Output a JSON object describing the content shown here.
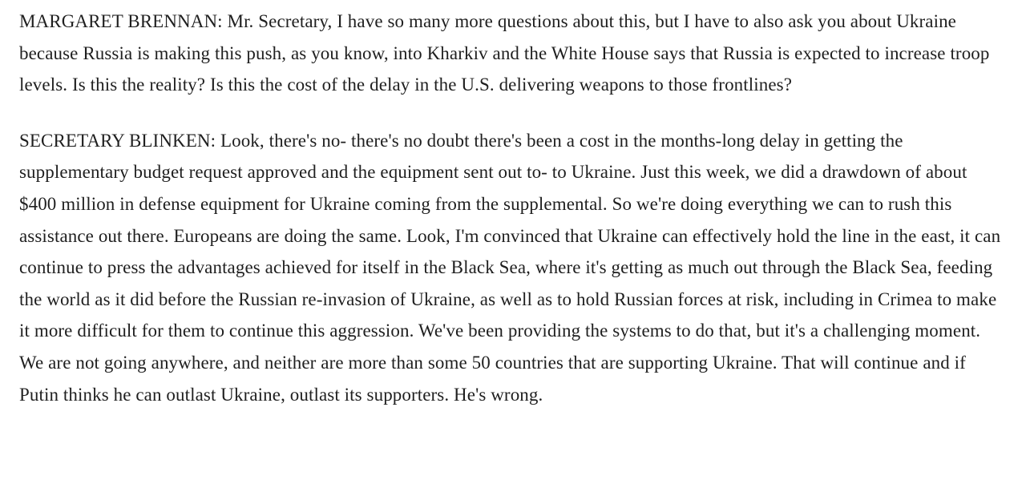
{
  "page": {
    "background_color": "#ffffff",
    "text_color": "#1f1f1f"
  },
  "transcript": {
    "paragraphs": [
      {
        "speaker": "MARGARET BRENNAN:",
        "text": "Mr. Secretary, I have so many more questions about this, but I have to also ask you about Ukraine because Russia is making this push, as you know, into Kharkiv and the White House says that Russia is expected to increase troop levels. Is this the reality? Is this the cost of the delay in the U.S. delivering weapons to those frontlines?"
      },
      {
        "speaker": "SECRETARY BLINKEN:",
        "text": "Look, there's no- there's no doubt there's been a cost in the months-long delay in getting the supplementary budget request approved and the equipment sent out to- to Ukraine. Just this week, we did a drawdown of about $400 million in defense equipment for Ukraine coming from the supplemental. So we're doing everything we can to rush this assistance out there. Europeans are doing the same. Look, I'm convinced that Ukraine can effectively hold the line in the east, it can continue to press the advantages achieved for itself in the Black Sea, where it's getting as much out through the Black Sea, feeding the world as it did before the Russian re-invasion of Ukraine, as well as to hold Russian forces at risk, including in Crimea to make it more difficult for them to continue this aggression. We've been providing the systems to do that, but it's a challenging moment. We are not going anywhere, and neither are more than some 50 countries that are supporting Ukraine. That will continue and if Putin thinks he can outlast Ukraine, outlast its supporters. He's wrong."
      }
    ]
  }
}
